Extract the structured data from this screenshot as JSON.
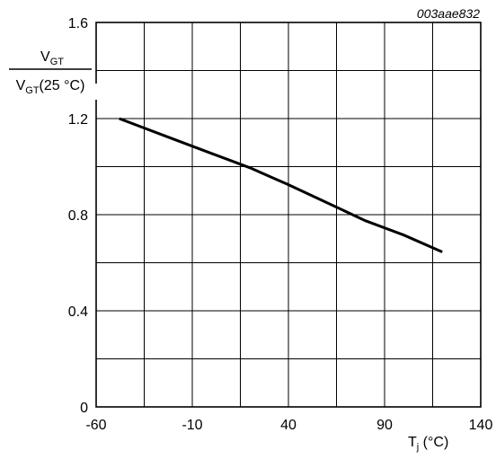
{
  "chart_data": {
    "type": "line",
    "figure_id": "003aae832",
    "xlabel": {
      "main": "T",
      "sub": "j",
      "rest": " (°C)"
    },
    "ylabel": {
      "numerator": {
        "main": "V",
        "sub": "GT"
      },
      "denominator": {
        "main": "V",
        "sub": "GT",
        "rest": "(25 °C)"
      }
    },
    "xlim": [
      -60,
      140
    ],
    "ylim": [
      0,
      1.6
    ],
    "x_ticks": [
      -60,
      -10,
      40,
      90,
      140
    ],
    "x_tick_labels": [
      "-60",
      "-10",
      "40",
      "90",
      "140"
    ],
    "y_ticks": [
      0,
      0.4,
      0.8,
      1.2,
      1.6
    ],
    "y_tick_labels": [
      "0",
      "0.4",
      "0.8",
      "1.2",
      "1.6"
    ],
    "grid": true,
    "grid_x_step": 25,
    "grid_y_step": 0.2,
    "series": [
      {
        "x": [
          -48,
          -20,
          0,
          20,
          30,
          40,
          60,
          80,
          100,
          120
        ],
        "y": [
          1.2,
          1.115,
          1.055,
          0.995,
          0.96,
          0.925,
          0.85,
          0.775,
          0.715,
          0.645
        ]
      }
    ],
    "colors": {
      "line": "#000000",
      "grid": "#000000",
      "background": "#ffffff"
    }
  }
}
